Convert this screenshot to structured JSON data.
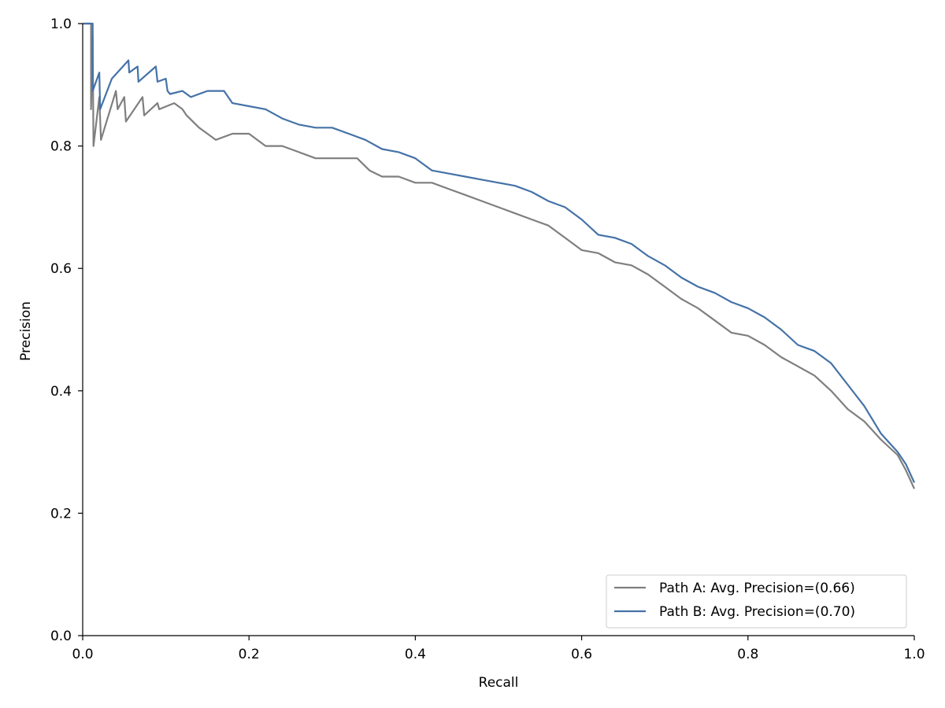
{
  "chart_data": {
    "type": "line",
    "title": "",
    "xlabel": "Recall",
    "ylabel": "Precision",
    "xlim": [
      0.0,
      1.0
    ],
    "ylim": [
      0.0,
      1.0
    ],
    "xticks": [
      "0.0",
      "0.2",
      "0.4",
      "0.6",
      "0.8",
      "1.0"
    ],
    "yticks": [
      "0.0",
      "0.2",
      "0.4",
      "0.6",
      "0.8",
      "1.0"
    ],
    "grid": false,
    "legend_position": "bottom-right",
    "series": [
      {
        "name": "Path A: Avg. Precision=(0.66)",
        "color": "#7f7f7f",
        "points": [
          [
            0.0,
            1.0
          ],
          [
            0.01,
            1.0
          ],
          [
            0.01,
            0.86
          ],
          [
            0.012,
            0.98
          ],
          [
            0.013,
            0.8
          ],
          [
            0.02,
            0.88
          ],
          [
            0.022,
            0.81
          ],
          [
            0.04,
            0.89
          ],
          [
            0.042,
            0.86
          ],
          [
            0.05,
            0.88
          ],
          [
            0.052,
            0.84
          ],
          [
            0.072,
            0.88
          ],
          [
            0.074,
            0.85
          ],
          [
            0.09,
            0.87
          ],
          [
            0.092,
            0.86
          ],
          [
            0.11,
            0.87
          ],
          [
            0.12,
            0.86
          ],
          [
            0.125,
            0.85
          ],
          [
            0.14,
            0.83
          ],
          [
            0.15,
            0.82
          ],
          [
            0.16,
            0.81
          ],
          [
            0.18,
            0.82
          ],
          [
            0.2,
            0.82
          ],
          [
            0.22,
            0.8
          ],
          [
            0.24,
            0.8
          ],
          [
            0.26,
            0.79
          ],
          [
            0.28,
            0.78
          ],
          [
            0.3,
            0.78
          ],
          [
            0.33,
            0.78
          ],
          [
            0.345,
            0.76
          ],
          [
            0.36,
            0.75
          ],
          [
            0.38,
            0.75
          ],
          [
            0.4,
            0.74
          ],
          [
            0.42,
            0.74
          ],
          [
            0.44,
            0.73
          ],
          [
            0.46,
            0.72
          ],
          [
            0.48,
            0.71
          ],
          [
            0.5,
            0.7
          ],
          [
            0.52,
            0.69
          ],
          [
            0.54,
            0.68
          ],
          [
            0.56,
            0.67
          ],
          [
            0.58,
            0.65
          ],
          [
            0.6,
            0.63
          ],
          [
            0.62,
            0.625
          ],
          [
            0.64,
            0.61
          ],
          [
            0.66,
            0.605
          ],
          [
            0.68,
            0.59
          ],
          [
            0.7,
            0.57
          ],
          [
            0.72,
            0.55
          ],
          [
            0.74,
            0.535
          ],
          [
            0.76,
            0.515
          ],
          [
            0.78,
            0.495
          ],
          [
            0.8,
            0.49
          ],
          [
            0.82,
            0.475
          ],
          [
            0.84,
            0.455
          ],
          [
            0.86,
            0.44
          ],
          [
            0.88,
            0.425
          ],
          [
            0.9,
            0.4
          ],
          [
            0.92,
            0.37
          ],
          [
            0.94,
            0.35
          ],
          [
            0.96,
            0.32
          ],
          [
            0.98,
            0.295
          ],
          [
            0.99,
            0.27
          ],
          [
            1.0,
            0.24
          ]
        ]
      },
      {
        "name": "Path B: Avg. Precision=(0.70)",
        "color": "#4572a7",
        "points": [
          [
            0.0,
            1.0
          ],
          [
            0.012,
            1.0
          ],
          [
            0.012,
            0.89
          ],
          [
            0.02,
            0.92
          ],
          [
            0.021,
            0.86
          ],
          [
            0.035,
            0.91
          ],
          [
            0.055,
            0.94
          ],
          [
            0.056,
            0.92
          ],
          [
            0.066,
            0.93
          ],
          [
            0.067,
            0.905
          ],
          [
            0.088,
            0.93
          ],
          [
            0.09,
            0.905
          ],
          [
            0.1,
            0.91
          ],
          [
            0.102,
            0.89
          ],
          [
            0.105,
            0.885
          ],
          [
            0.12,
            0.89
          ],
          [
            0.13,
            0.88
          ],
          [
            0.15,
            0.89
          ],
          [
            0.17,
            0.89
          ],
          [
            0.18,
            0.87
          ],
          [
            0.2,
            0.865
          ],
          [
            0.22,
            0.86
          ],
          [
            0.24,
            0.845
          ],
          [
            0.26,
            0.835
          ],
          [
            0.28,
            0.83
          ],
          [
            0.3,
            0.83
          ],
          [
            0.32,
            0.82
          ],
          [
            0.34,
            0.81
          ],
          [
            0.36,
            0.795
          ],
          [
            0.38,
            0.79
          ],
          [
            0.4,
            0.78
          ],
          [
            0.42,
            0.76
          ],
          [
            0.44,
            0.755
          ],
          [
            0.46,
            0.75
          ],
          [
            0.48,
            0.745
          ],
          [
            0.5,
            0.74
          ],
          [
            0.52,
            0.735
          ],
          [
            0.54,
            0.725
          ],
          [
            0.56,
            0.71
          ],
          [
            0.58,
            0.7
          ],
          [
            0.6,
            0.68
          ],
          [
            0.62,
            0.655
          ],
          [
            0.64,
            0.65
          ],
          [
            0.66,
            0.64
          ],
          [
            0.68,
            0.62
          ],
          [
            0.7,
            0.605
          ],
          [
            0.72,
            0.585
          ],
          [
            0.74,
            0.57
          ],
          [
            0.76,
            0.56
          ],
          [
            0.78,
            0.545
          ],
          [
            0.8,
            0.535
          ],
          [
            0.82,
            0.52
          ],
          [
            0.84,
            0.5
          ],
          [
            0.86,
            0.475
          ],
          [
            0.88,
            0.465
          ],
          [
            0.9,
            0.445
          ],
          [
            0.92,
            0.41
          ],
          [
            0.94,
            0.375
          ],
          [
            0.96,
            0.33
          ],
          [
            0.98,
            0.3
          ],
          [
            0.99,
            0.28
          ],
          [
            1.0,
            0.25
          ]
        ]
      }
    ]
  }
}
